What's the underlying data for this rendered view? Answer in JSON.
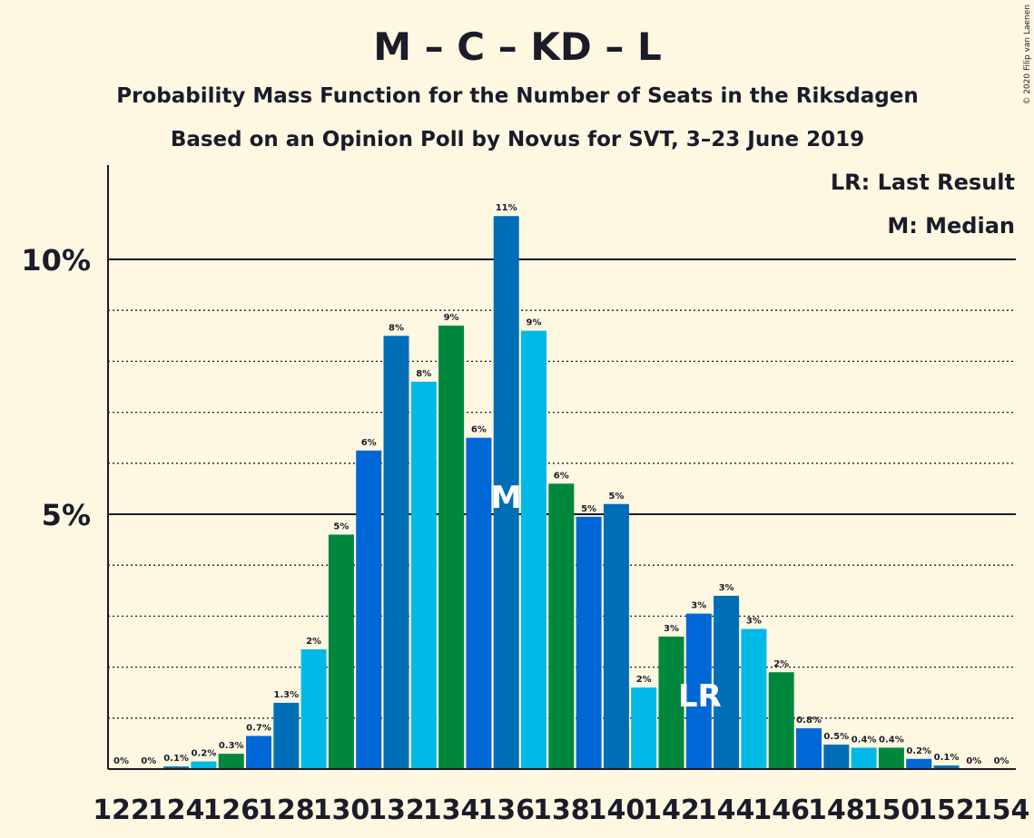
{
  "chart_data": {
    "type": "bar",
    "title": "M – C – KD – L",
    "subtitle": "Probability Mass Function for the Number of Seats in the Riksdagen",
    "subtitle2": "Based on an Opinion Poll by Novus for SVT, 3–23 June 2019",
    "copyright": "© 2020 Filip van Laenen",
    "legend": {
      "lr": "LR: Last Result",
      "m": "M: Median",
      "placement": "top-right"
    },
    "y_ticks": [
      {
        "value": 5,
        "label": "5%"
      },
      {
        "value": 10,
        "label": "10%"
      }
    ],
    "ylim": [
      0,
      11.8
    ],
    "grid": "dotted every 1%, solid at 5% and 10%",
    "x_tick_labels": [
      "122",
      "124",
      "126",
      "128",
      "130",
      "132",
      "134",
      "136",
      "138",
      "140",
      "142",
      "144",
      "146",
      "148",
      "150",
      "152",
      "154"
    ],
    "categories": [
      122,
      123,
      124,
      125,
      126,
      127,
      128,
      129,
      130,
      131,
      132,
      133,
      134,
      135,
      136,
      137,
      138,
      139,
      140,
      141,
      142,
      143,
      144,
      145,
      146,
      147,
      148,
      149,
      150,
      151,
      152,
      153,
      154
    ],
    "values": [
      0,
      0,
      0.05,
      0.15,
      0.3,
      0.65,
      1.3,
      2.35,
      4.6,
      6.25,
      8.5,
      7.6,
      8.7,
      6.5,
      10.85,
      8.6,
      5.6,
      4.95,
      5.2,
      1.6,
      2.6,
      3.05,
      3.4,
      2.75,
      1.9,
      0.8,
      0.48,
      0.42,
      0.42,
      0.2,
      0.07,
      0,
      0
    ],
    "data_labels": [
      "0%",
      "0%",
      "0.1%",
      "0.2%",
      "0.3%",
      "0.7%",
      "1.3%",
      "2%",
      "5%",
      "6%",
      "8%",
      "8%",
      "9%",
      "6%",
      "11%",
      "9%",
      "6%",
      "5%",
      "5%",
      "2%",
      "3%",
      "3%",
      "3%",
      "3%",
      "2%",
      "0.8%",
      "0.5%",
      "0.4%",
      "0.4%",
      "0.2%",
      "0.1%",
      "0%",
      "0%"
    ],
    "bar_colors": [
      "#00b9e7",
      "#0067d6",
      "#006eb6",
      "#00b9e7",
      "#00873e",
      "#0067d6",
      "#006eb6",
      "#00b9e7",
      "#00873e",
      "#0067d6",
      "#006eb6",
      "#00b9e7",
      "#00873e",
      "#0067d6",
      "#006eb6",
      "#00b9e7",
      "#00873e",
      "#0067d6",
      "#006eb6",
      "#00b9e7",
      "#00873e",
      "#0067d6",
      "#006eb6",
      "#00b9e7",
      "#00873e",
      "#0067d6",
      "#006eb6",
      "#00b9e7",
      "#00873e",
      "#0067d6",
      "#006eb6",
      "#00b9e7",
      "#00873e"
    ],
    "markers": [
      {
        "category": 136,
        "label": "M"
      },
      {
        "category": 143,
        "label": "LR"
      }
    ]
  }
}
